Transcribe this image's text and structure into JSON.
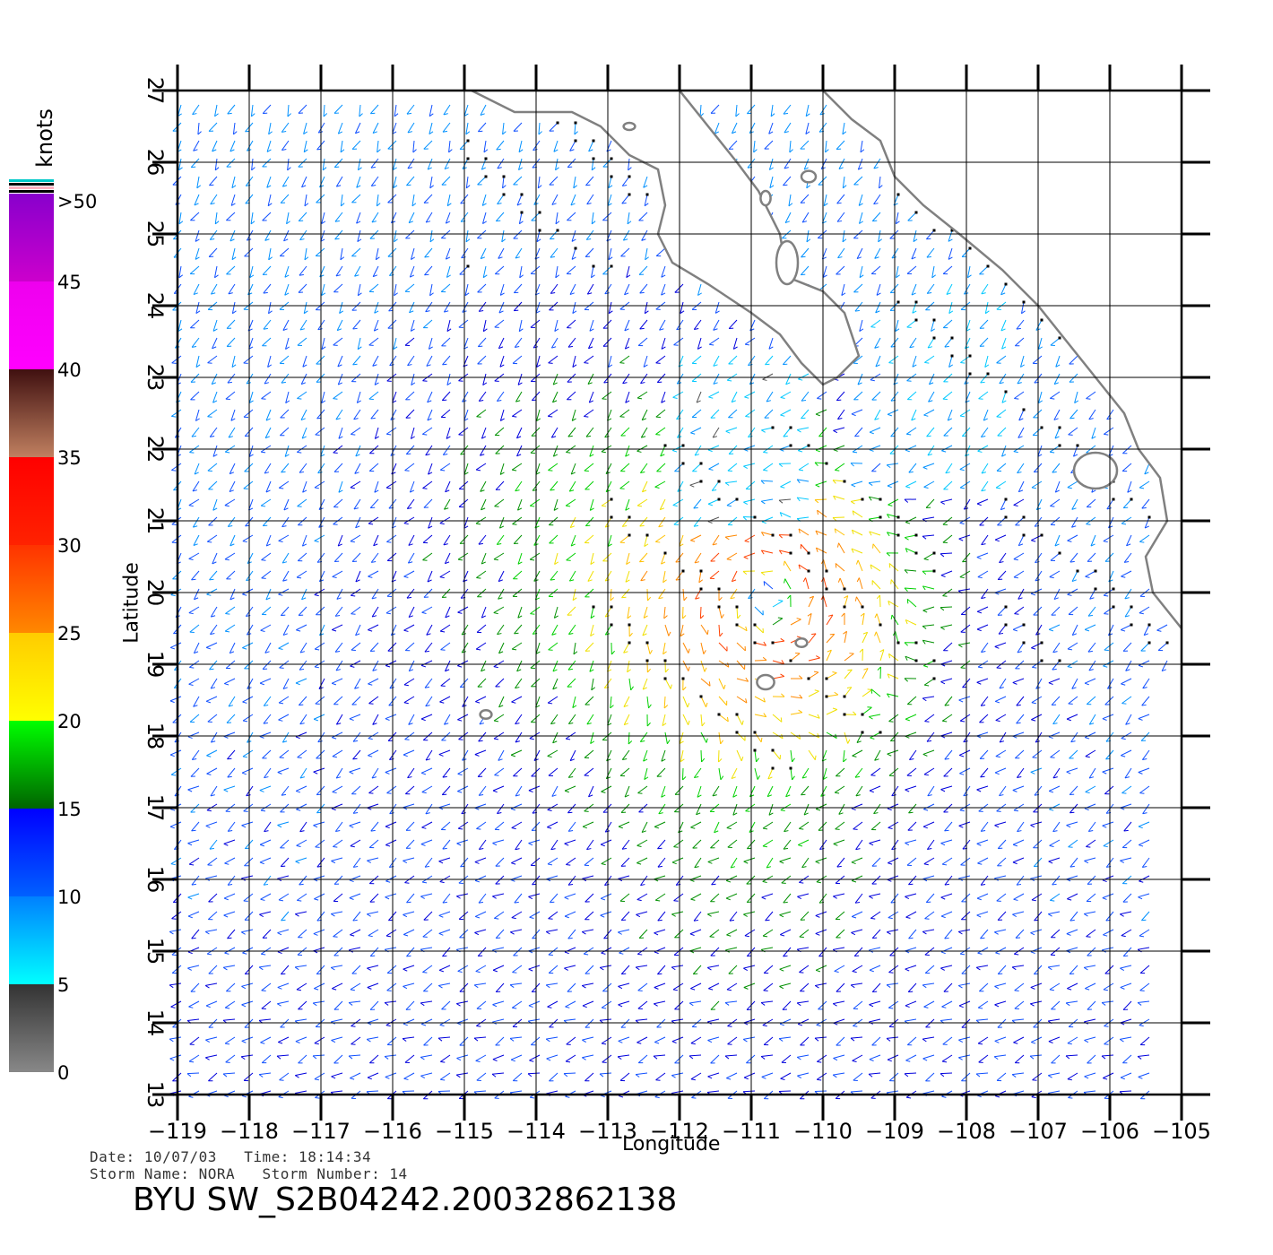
{
  "chart_data": {
    "type": "wind vector map",
    "xlabel": "Longitude",
    "ylabel": "Latitude",
    "xlim": [
      -119,
      -105
    ],
    "ylim": [
      13,
      27
    ],
    "x_ticks": [
      -119,
      -118,
      -117,
      -116,
      -115,
      -114,
      -113,
      -112,
      -111,
      -110,
      -109,
      -108,
      -107,
      -106,
      -105
    ],
    "y_ticks": [
      13,
      14,
      15,
      16,
      17,
      18,
      19,
      20,
      21,
      22,
      23,
      24,
      25,
      26,
      27
    ],
    "x_tick_labels": [
      "−119",
      "−118",
      "−117",
      "−116",
      "−115",
      "−114",
      "−113",
      "−112",
      "−111",
      "−110",
      "−109",
      "−108",
      "−107",
      "−106",
      "−105"
    ],
    "y_tick_labels": [
      "13",
      "14",
      "15",
      "16",
      "17",
      "18",
      "19",
      "20",
      "21",
      "22",
      "23",
      "24",
      "25",
      "26",
      "27"
    ],
    "grid": true,
    "colorbar": {
      "unit": "knots",
      "placement": "left",
      "labels": [
        "0",
        "5",
        "10",
        "15",
        "20",
        "25",
        "30",
        "35",
        "40",
        "45",
        ">50"
      ],
      "bands": [
        {
          "from": 0,
          "to": 5,
          "colors": [
            "#888888",
            "#333333"
          ]
        },
        {
          "from": 5,
          "to": 10,
          "colors": [
            "#00ffff",
            "#0080ff"
          ]
        },
        {
          "from": 10,
          "to": 15,
          "colors": [
            "#0060ff",
            "#0000ff"
          ]
        },
        {
          "from": 15,
          "to": 20,
          "colors": [
            "#006400",
            "#00ff00"
          ]
        },
        {
          "from": 20,
          "to": 25,
          "colors": [
            "#ffff00",
            "#ffcc00"
          ]
        },
        {
          "from": 25,
          "to": 30,
          "colors": [
            "#ff8800",
            "#ff3300"
          ]
        },
        {
          "from": 30,
          "to": 35,
          "colors": [
            "#ff2200",
            "#ff0000"
          ]
        },
        {
          "from": 35,
          "to": 40,
          "colors": [
            "#c08060",
            "#401010"
          ]
        },
        {
          "from": 40,
          "to": 45,
          "colors": [
            "#ff00ff",
            "#ee00ee"
          ]
        },
        {
          "from": 45,
          "to": 50,
          "colors": [
            "#cc00cc",
            "#8800cc"
          ]
        },
        {
          "from": 50,
          "to": 51,
          "colors": [
            "#7700cc",
            "#5500bb"
          ]
        }
      ]
    },
    "storm_center": [
      -110.8,
      19.9
    ],
    "wind_field": {
      "north_speed_knots": 9,
      "south_speed_knots": 12,
      "storm_radius_deg": 1.6,
      "storm_peak_knots": 30
    },
    "coastline": [
      [
        [
          -114.9,
          27
        ],
        [
          -114.3,
          26.7
        ],
        [
          -113.5,
          26.7
        ],
        [
          -113.1,
          26.5
        ],
        [
          -112.7,
          26.1
        ],
        [
          -112.3,
          25.9
        ],
        [
          -112.2,
          25.4
        ],
        [
          -112.3,
          25.0
        ],
        [
          -112.1,
          24.6
        ],
        [
          -111.6,
          24.3
        ],
        [
          -111.0,
          23.9
        ],
        [
          -110.6,
          23.6
        ],
        [
          -110.3,
          23.2
        ],
        [
          -110.0,
          22.9
        ],
        [
          -109.8,
          23.0
        ],
        [
          -109.5,
          23.3
        ],
        [
          -109.7,
          23.9
        ],
        [
          -110.0,
          24.2
        ],
        [
          -110.5,
          24.4
        ],
        [
          -110.6,
          25.0
        ],
        [
          -110.9,
          25.6
        ],
        [
          -111.2,
          26.0
        ],
        [
          -111.6,
          26.5
        ],
        [
          -112.0,
          27.0
        ]
      ],
      [
        [
          -110.0,
          27.0
        ],
        [
          -109.6,
          26.6
        ],
        [
          -109.2,
          26.3
        ],
        [
          -109.0,
          25.8
        ],
        [
          -108.6,
          25.4
        ],
        [
          -108.1,
          25.0
        ],
        [
          -107.5,
          24.5
        ],
        [
          -107.0,
          24.0
        ],
        [
          -106.6,
          23.5
        ],
        [
          -106.2,
          23.0
        ],
        [
          -105.8,
          22.5
        ],
        [
          -105.6,
          22.0
        ],
        [
          -105.3,
          21.6
        ],
        [
          -105.2,
          21.0
        ],
        [
          -105.5,
          20.5
        ],
        [
          -105.4,
          20.0
        ],
        [
          -105.0,
          19.5
        ]
      ]
    ],
    "islands": [
      {
        "lon": -112.7,
        "lat": 26.5,
        "rx": 0.08,
        "ry": 0.05
      },
      {
        "lon": -110.2,
        "lat": 25.8,
        "rx": 0.1,
        "ry": 0.08
      },
      {
        "lon": -110.8,
        "lat": 25.5,
        "rx": 0.07,
        "ry": 0.1
      },
      {
        "lon": -110.5,
        "lat": 24.6,
        "rx": 0.15,
        "ry": 0.3
      },
      {
        "lon": -106.2,
        "lat": 21.7,
        "rx": 0.3,
        "ry": 0.25
      },
      {
        "lon": -110.8,
        "lat": 18.75,
        "rx": 0.12,
        "ry": 0.1
      },
      {
        "lon": -110.3,
        "lat": 19.3,
        "rx": 0.08,
        "ry": 0.06
      },
      {
        "lon": -114.7,
        "lat": 18.3,
        "rx": 0.08,
        "ry": 0.06
      }
    ]
  },
  "info": {
    "date_time": "Date: 10/07/03   Time: 18:14:34",
    "storm": "Storm Name: NORA   Storm Number: 14"
  },
  "product_id": "BYU SW_S2B04242.20032862138"
}
